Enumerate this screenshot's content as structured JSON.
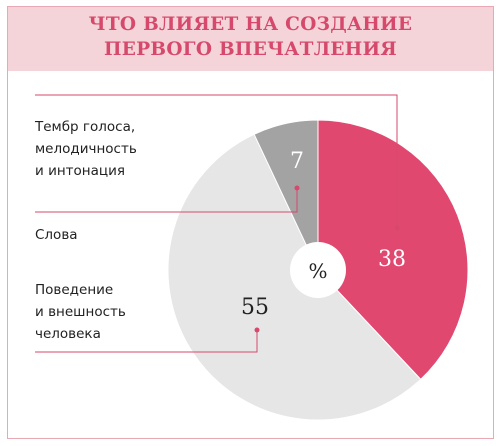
{
  "title": {
    "line1": "ЧТО ВЛИЯЕТ НА СОЗДАНИЕ",
    "line2": "ПЕРВОГО ВПЕЧАТЛЕНИЯ"
  },
  "center_label": "%",
  "labels": {
    "voice": [
      "Тембр голоса,",
      "мелодичность",
      "и интонация"
    ],
    "words": "Слова",
    "behavior": [
      "Поведение",
      "и внешность",
      "человека"
    ]
  },
  "colors": {
    "header_bg": "#f4d4d8",
    "accent": "#d6496c",
    "words": "#e14870",
    "voice": "#a3a3a3",
    "behavior": "#e6e6e6"
  },
  "chart_data": {
    "type": "pie",
    "title": "ЧТО ВЛИЯЕТ НА СОЗДАНИЕ ПЕРВОГО ВПЕЧАТЛЕНИЯ",
    "unit": "%",
    "slices": [
      {
        "label": "Слова",
        "value": 38,
        "color": "#e14870"
      },
      {
        "label": "Поведение и внешность человека",
        "value": 55,
        "color": "#e6e6e6"
      },
      {
        "label": "Тембр голоса, мелодичность и интонация",
        "value": 7,
        "color": "#a3a3a3"
      }
    ]
  }
}
